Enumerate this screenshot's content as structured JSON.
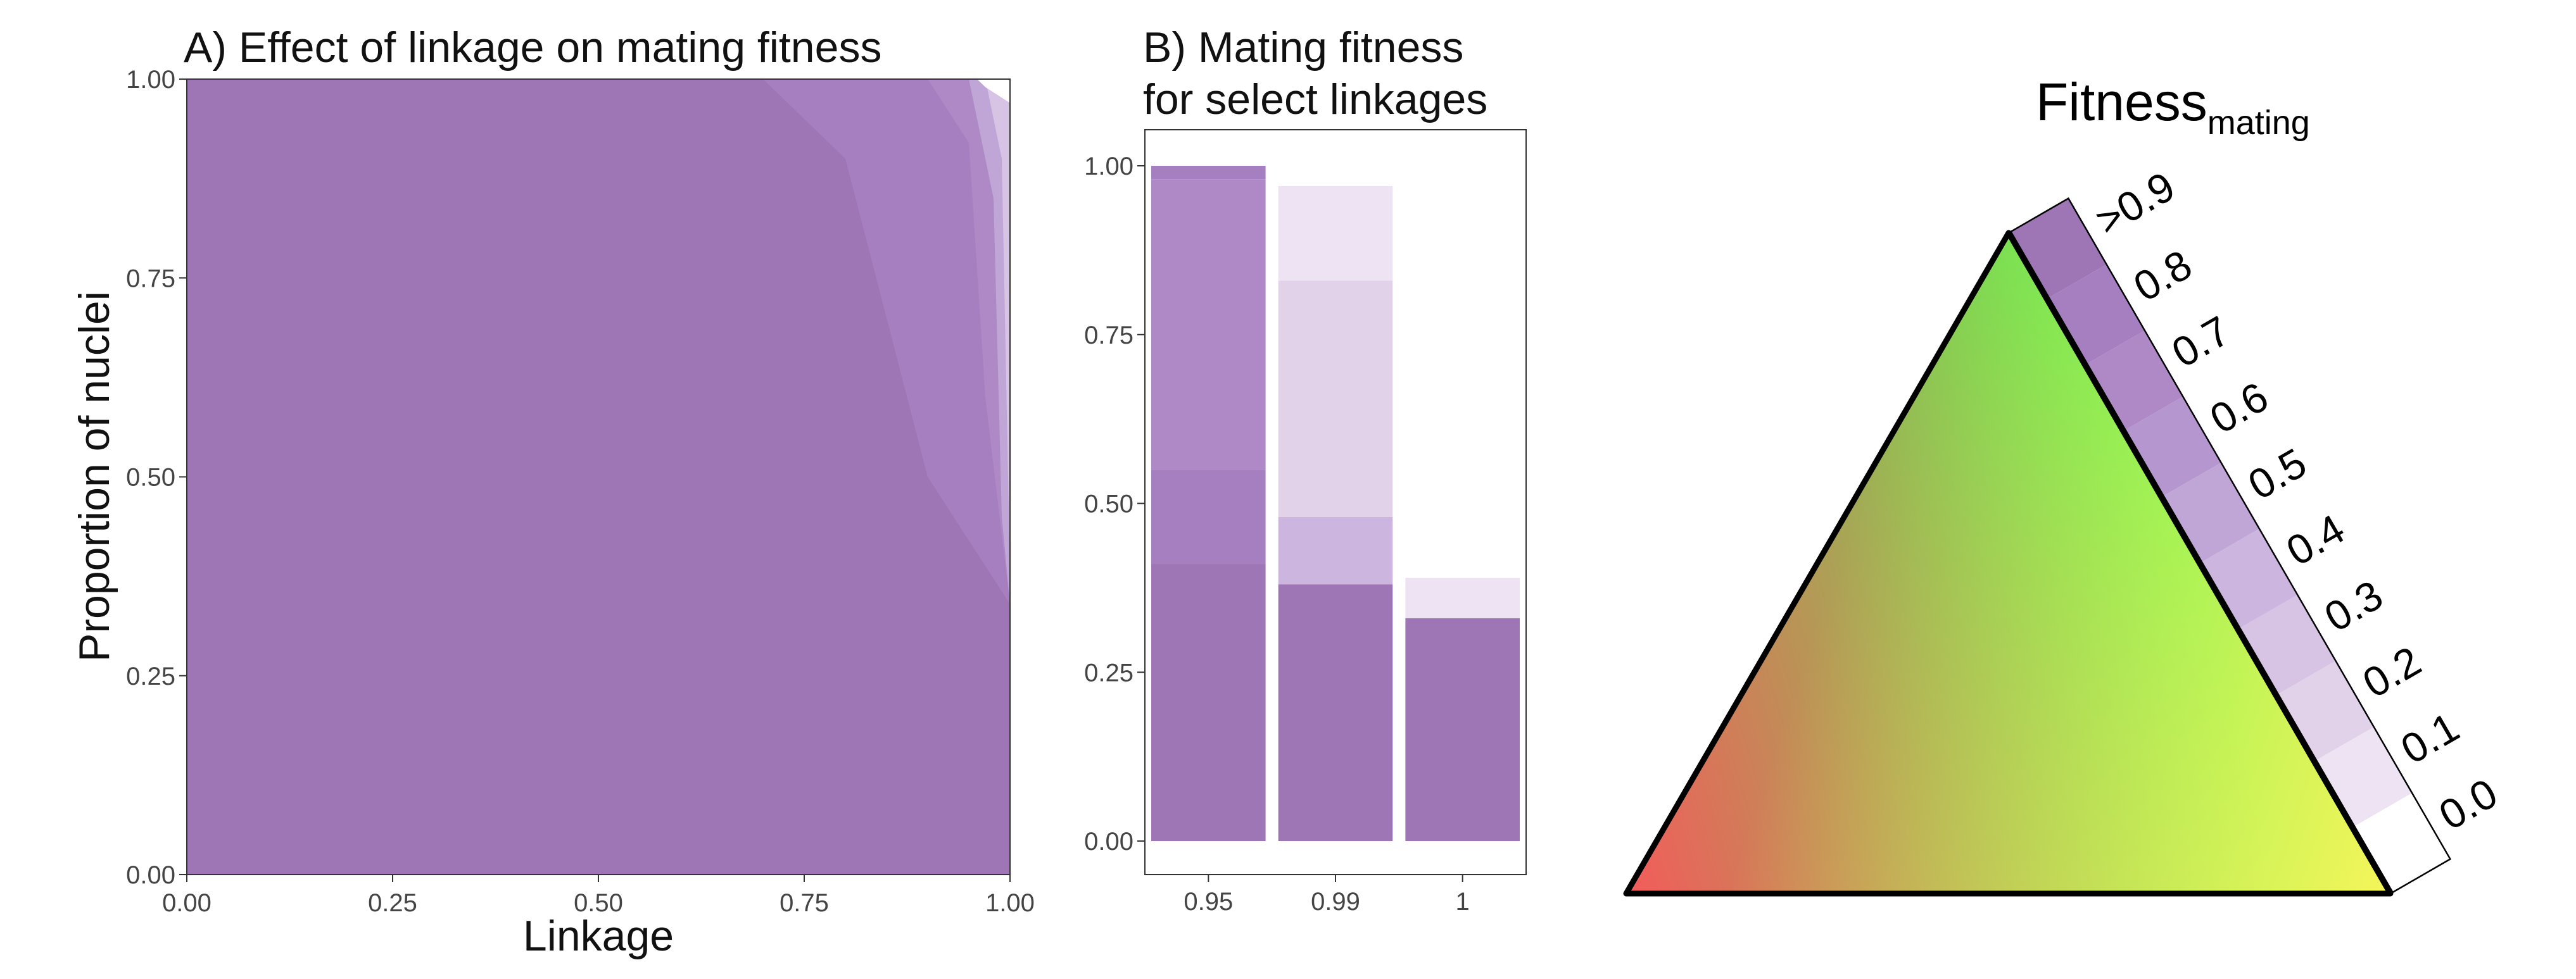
{
  "chart_data": [
    {
      "type": "area",
      "title": "A) Effect of linkage on mating fitness",
      "xlabel": "Linkage",
      "ylabel": "Proportion of nuclei",
      "xlim": [
        0,
        1
      ],
      "ylim": [
        0,
        1
      ],
      "x_ticks": [
        "0.00",
        "0.25",
        "0.50",
        "0.75",
        "1.00"
      ],
      "y_ticks": [
        "0.00",
        "0.25",
        "0.50",
        "0.75",
        "1.00"
      ],
      "grid": false,
      "regions": [
        {
          "level": ">0.9",
          "polygon": [
            [
              0,
              0
            ],
            [
              1,
              0
            ],
            [
              1,
              1
            ],
            [
              0,
              1
            ]
          ]
        },
        {
          "level": "0.8",
          "polygon": [
            [
              0.7,
              1
            ],
            [
              0.8,
              0.9
            ],
            [
              0.9,
              0.5
            ],
            [
              1,
              0.34
            ],
            [
              1,
              1
            ]
          ]
        },
        {
          "level": "0.7",
          "polygon": [
            [
              0.9,
              1
            ],
            [
              0.95,
              0.92
            ],
            [
              0.97,
              0.6
            ],
            [
              1,
              0.34
            ],
            [
              1,
              1
            ]
          ]
        },
        {
          "level": "0.5",
          "polygon": [
            [
              0.95,
              1
            ],
            [
              0.98,
              0.85
            ],
            [
              0.99,
              0.45
            ],
            [
              1,
              0.34
            ],
            [
              1,
              1
            ]
          ]
        },
        {
          "level": "0.3",
          "polygon": [
            [
              0.97,
              1
            ],
            [
              0.99,
              0.9
            ],
            [
              1,
              0.38
            ],
            [
              1,
              1
            ]
          ]
        },
        {
          "level": "0.0",
          "polygon": [
            [
              0.96,
              1
            ],
            [
              0.97,
              0.99
            ],
            [
              1,
              0.97
            ],
            [
              1,
              1
            ]
          ]
        }
      ]
    },
    {
      "type": "bar",
      "title": "B) Mating fitness\nfor select linkages",
      "categories": [
        "0.95",
        "0.99",
        "1"
      ],
      "ylim": [
        0,
        1
      ],
      "y_ticks": [
        "0.00",
        "0.25",
        "0.50",
        "0.75",
        "1.00"
      ],
      "grid": false,
      "stacks": [
        [
          {
            "from": 0,
            "to": 0.41,
            "level": ">0.9"
          },
          {
            "from": 0.41,
            "to": 0.55,
            "level": "0.8"
          },
          {
            "from": 0.55,
            "to": 0.98,
            "level": "0.7"
          },
          {
            "from": 0.98,
            "to": 1.0,
            "level": "0.8"
          }
        ],
        [
          {
            "from": 0,
            "to": 0.38,
            "level": ">0.9"
          },
          {
            "from": 0.38,
            "to": 0.48,
            "level": "0.4"
          },
          {
            "from": 0.48,
            "to": 0.83,
            "level": "0.2"
          },
          {
            "from": 0.83,
            "to": 0.97,
            "level": "0.1"
          }
        ],
        [
          {
            "from": 0,
            "to": 0.33,
            "level": ">0.9"
          },
          {
            "from": 0.33,
            "to": 0.39,
            "level": "0.1"
          }
        ]
      ]
    }
  ],
  "legend": {
    "title": "Fitness",
    "title_sub": "mating",
    "levels": [
      "0.0",
      "0.1",
      "0.2",
      "0.3",
      "0.4",
      "0.5",
      "0.6",
      "0.7",
      "0.8",
      ">0.9"
    ],
    "colors": {
      "0.0": "#ffffff",
      "0.1": "#ede3f2",
      "0.2": "#e1d2ea",
      "0.3": "#d7c3e4",
      "0.4": "#ccb5de",
      "0.5": "#c0a6d6",
      "0.6": "#b596cf",
      "0.7": "#ae89c6",
      "0.8": "#a67fc1",
      ">0.9": "#9f76b5"
    }
  },
  "ternary": {
    "corner_colors": {
      "top": "#5cf04f",
      "left": "#f35b5b",
      "right": "#f6f55a"
    }
  }
}
